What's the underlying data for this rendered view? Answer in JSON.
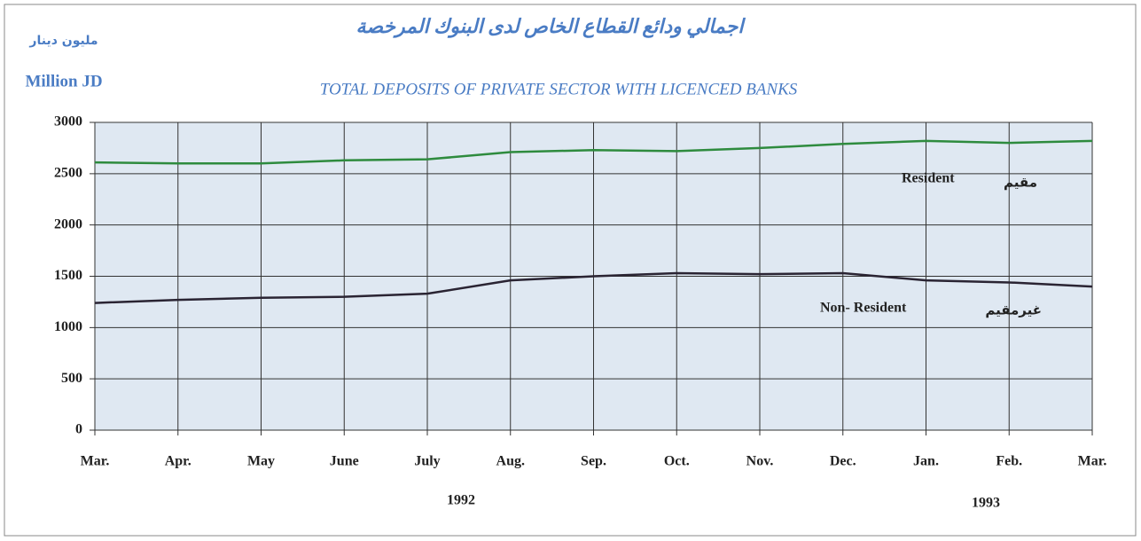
{
  "chart_data": {
    "type": "line",
    "arabic_title": "اجمالي ودائع القطاع الخاص لدى البنوك المرخصة",
    "title": "TOTAL DEPOSITS OF PRIVATE SECTOR WITH LICENCED BANKS",
    "ylabel": "Million JD",
    "ylabel_ar": "مليون دينار",
    "categories": [
      "Mar.",
      "Apr.",
      "May",
      "June",
      "July",
      "Aug.",
      "Sep.",
      "Oct.",
      "Nov.",
      "Dec.",
      "Jan.",
      "Feb.",
      "Mar."
    ],
    "series": [
      {
        "name": "Resident",
        "color": "#2e8b3e",
        "values": [
          2610,
          2600,
          2600,
          2630,
          2640,
          2710,
          2730,
          2720,
          2750,
          2790,
          2820,
          2800,
          2820
        ]
      },
      {
        "name": "Non- Resident",
        "color": "#2a2433",
        "values": [
          1240,
          1270,
          1290,
          1300,
          1330,
          1460,
          1500,
          1530,
          1520,
          1530,
          1460,
          1440,
          1400
        ]
      }
    ],
    "annotations": [
      "1992",
      "1993",
      "مقيم",
      "غيرمقيم"
    ],
    "ylim": [
      0,
      3000
    ],
    "yticks": [
      0,
      500,
      1000,
      1500,
      2000,
      2500,
      3000
    ],
    "grid": true
  }
}
